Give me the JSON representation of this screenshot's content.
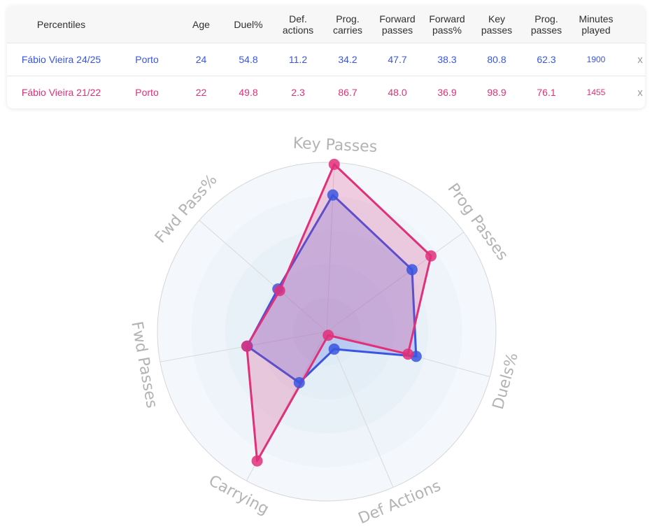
{
  "table": {
    "headers": [
      "Percentiles",
      "",
      "Age",
      "Duel%",
      "Def. actions",
      "Prog. carries",
      "Forward passes",
      "Forward pass%",
      "Key passes",
      "Prog. passes",
      "Minutes played",
      ""
    ],
    "rows": [
      {
        "player": "Fábio Vieira 24/25",
        "team": "Porto",
        "age": "24",
        "duel_pct": "54.8",
        "def_actions": "11.2",
        "prog_carries": "34.2",
        "forward_passes": "47.7",
        "forward_pass_pct": "38.3",
        "key_passes": "80.8",
        "prog_passes": "62.3",
        "minutes": "1900",
        "remove": "x",
        "color": "#3a56e0"
      },
      {
        "player": "Fábio Vieira 21/22",
        "team": "Porto",
        "age": "22",
        "duel_pct": "49.8",
        "def_actions": "2.3",
        "prog_carries": "86.7",
        "forward_passes": "48.0",
        "forward_pass_pct": "36.9",
        "key_passes": "98.9",
        "prog_passes": "76.1",
        "minutes": "1455",
        "remove": "x",
        "color": "#e0307a"
      }
    ]
  },
  "chart_data": {
    "type": "radar",
    "axes": [
      "Key Passes",
      "Prog Passes",
      "Duels%",
      "Def Actions",
      "Carrying",
      "Fwd Passes",
      "Fwd Pass%"
    ],
    "range": [
      0,
      100
    ],
    "series": [
      {
        "name": "Fábio Vieira 24/25",
        "values": [
          80.8,
          62.3,
          54.8,
          11.2,
          34.2,
          47.7,
          38.3
        ],
        "color": "#3a56e0"
      },
      {
        "name": "Fábio Vieira 21/22",
        "values": [
          98.9,
          76.1,
          49.8,
          2.3,
          86.7,
          48.0,
          36.9
        ],
        "color": "#e0307a"
      }
    ],
    "grid": true
  }
}
